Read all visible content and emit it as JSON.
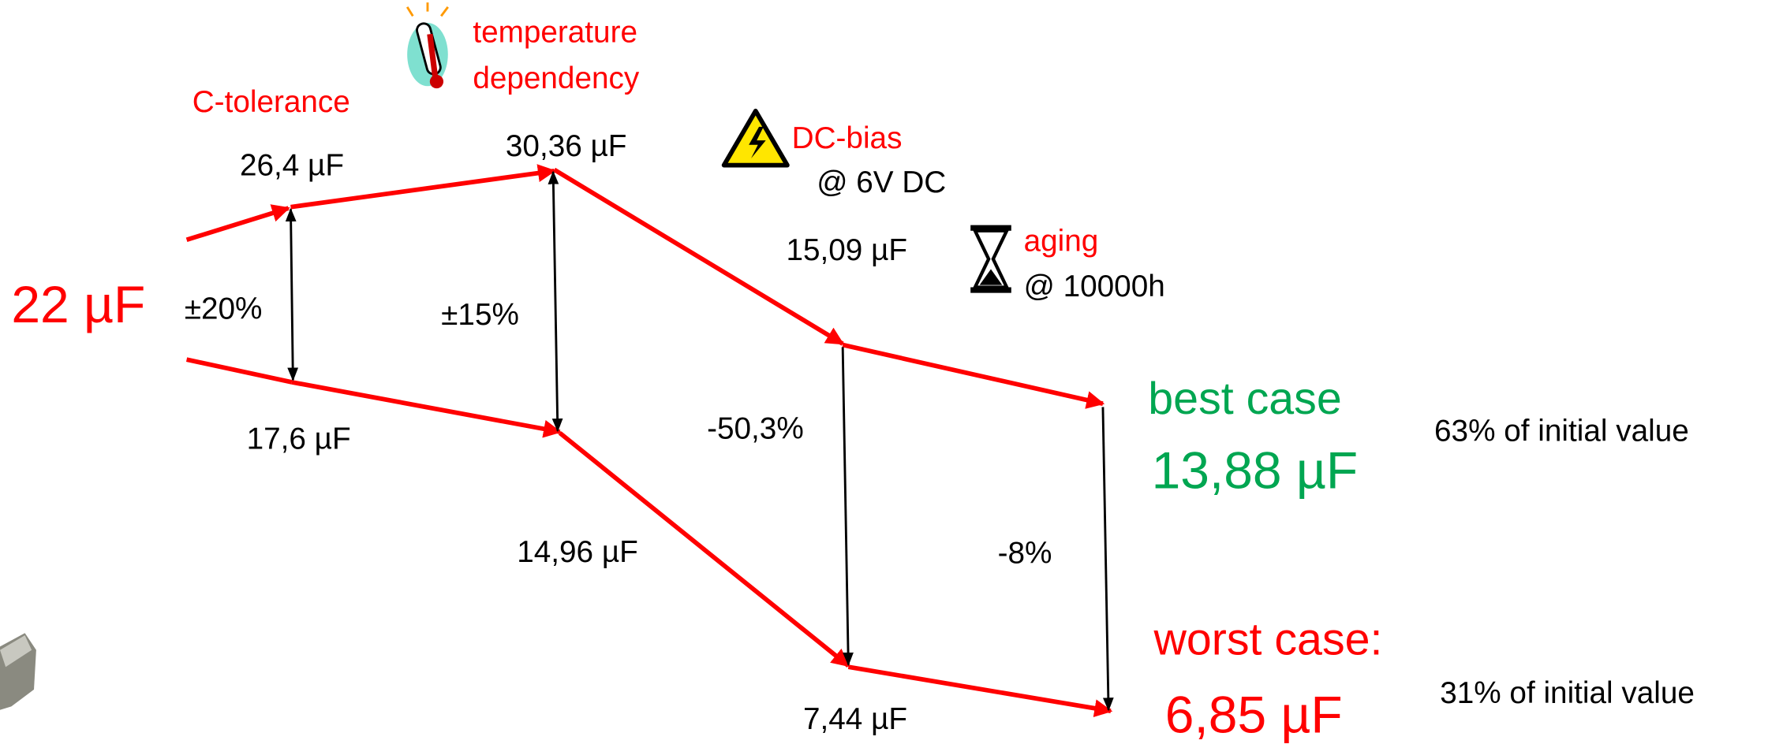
{
  "start": {
    "value": "22 µF",
    "tolerance": "±20%"
  },
  "steps": {
    "c_tolerance": {
      "title": "C-tolerance",
      "upper": "26,4 µF",
      "lower": "17,6 µF"
    },
    "temperature": {
      "title_lines": [
        "temperature",
        "dependency"
      ],
      "range": "±15%",
      "upper": "30,36 µF",
      "lower": "14,96 µF"
    },
    "dc_bias": {
      "title": "DC-bias",
      "condition": "@ 6V DC",
      "change": "-50,3%",
      "upper": "15,09 µF",
      "lower": "7,44 µF"
    },
    "aging": {
      "title": "aging",
      "condition": "@ 10000h",
      "change": "-8%"
    }
  },
  "results": {
    "best": {
      "label": "best case",
      "value": "13,88 µF",
      "note": "63% of initial value"
    },
    "worst": {
      "label": "worst case:",
      "value": "6,85 µF",
      "note": "31% of initial value"
    }
  }
}
